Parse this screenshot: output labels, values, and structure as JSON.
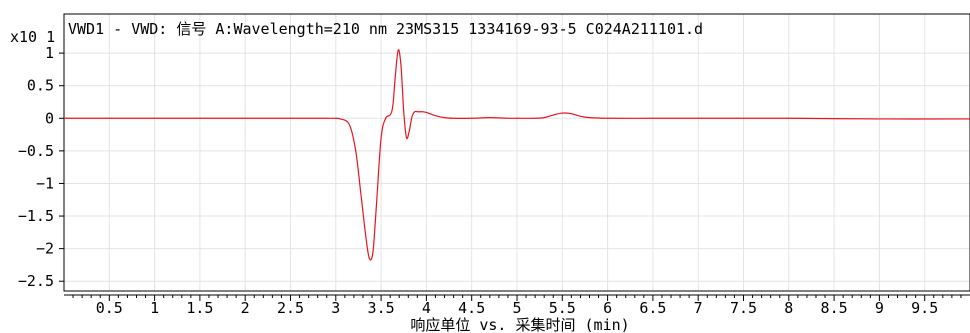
{
  "chart_data": {
    "type": "line",
    "title": "VWD1 - VWD: 信号 A:Wavelength=210 nm 23MS315 1334169-93-5 C024A211101.d",
    "xlabel": "响应单位 vs. 采集时间 (min)",
    "ylabel": "",
    "y_multiplier": "x10 1",
    "xlim": [
      0,
      10
    ],
    "ylim": [
      -2.65,
      1.6
    ],
    "x_ticks": [
      0.5,
      1,
      1.5,
      2,
      2.5,
      3,
      3.5,
      4,
      4.5,
      5,
      5.5,
      6,
      6.5,
      7,
      7.5,
      8,
      8.5,
      9,
      9.5
    ],
    "x_tick_labels": [
      "0.5",
      "1",
      "1.5",
      "2",
      "2.5",
      "3",
      "3.5",
      "4",
      "4.5",
      "5",
      "5.5",
      "6",
      "6.5",
      "7",
      "7.5",
      "8",
      "8.5",
      "9",
      "9.5"
    ],
    "y_ticks": [
      1,
      0.5,
      0,
      -0.5,
      -1,
      -1.5,
      -2,
      -2.5
    ],
    "y_tick_labels": [
      "1",
      "0.5",
      "0",
      "−0.5",
      "−1",
      "−1.5",
      "−2",
      "−2.5"
    ],
    "grid": true,
    "series": [
      {
        "color": "#e8141c",
        "x": [
          0,
          2.0,
          2.9,
          3.05,
          3.15,
          3.22,
          3.28,
          3.33,
          3.37,
          3.41,
          3.45,
          3.5,
          3.55,
          3.6,
          3.63,
          3.66,
          3.69,
          3.72,
          3.75,
          3.78,
          3.81,
          3.84,
          3.87,
          3.9,
          3.93,
          3.96,
          4.0,
          4.1,
          4.2,
          4.3,
          4.5,
          4.7,
          4.9,
          5.0,
          5.2,
          5.3,
          5.4,
          5.5,
          5.6,
          5.7,
          5.8,
          6.0,
          6.5,
          7.0,
          8.0,
          9.0,
          10.0
        ],
        "y": [
          0,
          0,
          0,
          -0.01,
          -0.1,
          -0.5,
          -1.2,
          -1.8,
          -2.15,
          -2.05,
          -1.3,
          -0.3,
          0.0,
          0.05,
          0.2,
          0.7,
          1.05,
          0.8,
          0.1,
          -0.3,
          -0.2,
          0.02,
          0.1,
          0.1,
          0.1,
          0.1,
          0.09,
          0.04,
          0.01,
          0.0,
          0.0,
          0.01,
          0.0,
          0.0,
          0.0,
          0.01,
          0.05,
          0.08,
          0.07,
          0.03,
          0.01,
          0.0,
          0.0,
          0.0,
          0.0,
          -0.01,
          -0.01
        ]
      }
    ]
  }
}
